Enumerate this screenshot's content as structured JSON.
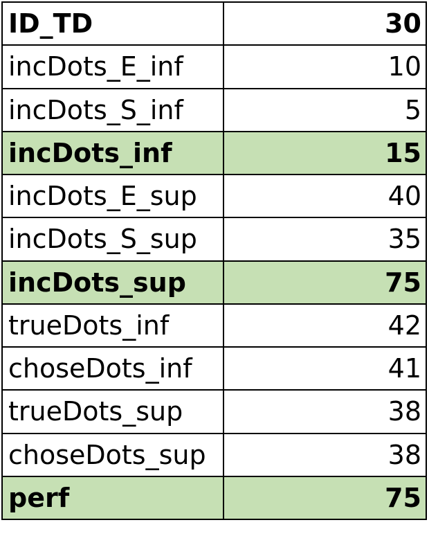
{
  "table": {
    "rows": [
      {
        "label": "ID_TD",
        "value": "30",
        "bold": true,
        "highlight": false
      },
      {
        "label": "incDots_E_inf",
        "value": "10",
        "bold": false,
        "highlight": false
      },
      {
        "label": "incDots_S_inf",
        "value": "5",
        "bold": false,
        "highlight": false
      },
      {
        "label": "incDots_inf",
        "value": "15",
        "bold": true,
        "highlight": true
      },
      {
        "label": "incDots_E_sup",
        "value": "40",
        "bold": false,
        "highlight": false
      },
      {
        "label": "incDots_S_sup",
        "value": "35",
        "bold": false,
        "highlight": false
      },
      {
        "label": "incDots_sup",
        "value": "75",
        "bold": true,
        "highlight": true
      },
      {
        "label": "trueDots_inf",
        "value": "42",
        "bold": false,
        "highlight": false
      },
      {
        "label": "choseDots_inf",
        "value": "41",
        "bold": false,
        "highlight": false
      },
      {
        "label": "trueDots_sup",
        "value": "38",
        "bold": false,
        "highlight": false
      },
      {
        "label": "choseDots_sup",
        "value": "38",
        "bold": false,
        "highlight": false
      },
      {
        "label": "perf",
        "value": "75",
        "bold": true,
        "highlight": true
      }
    ],
    "highlight_color": "#c6e0b4",
    "border_color": "#000000"
  }
}
